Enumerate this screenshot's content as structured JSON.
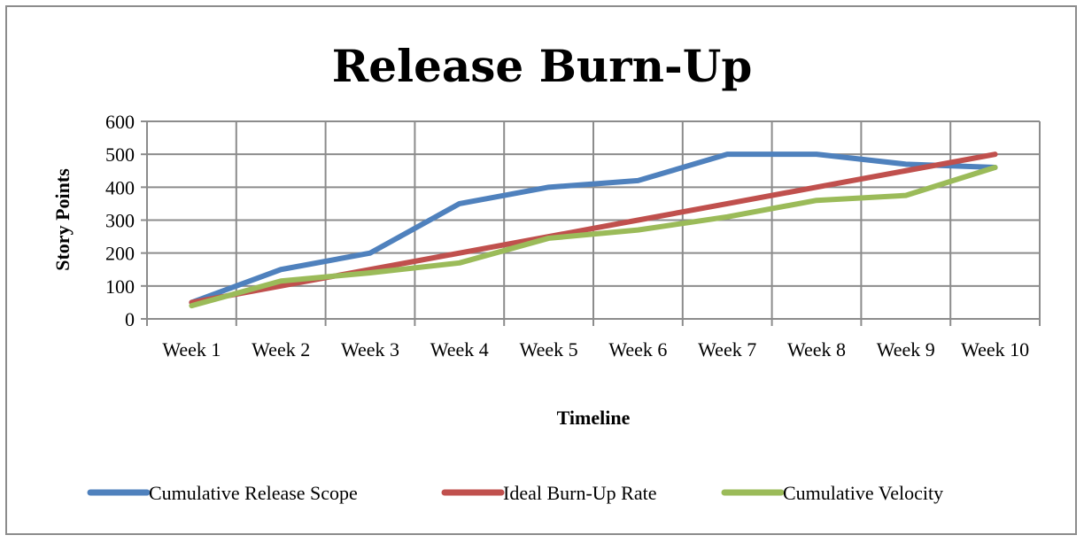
{
  "chart_data": {
    "type": "line",
    "title": "Release Burn-Up",
    "xlabel": "Timeline",
    "ylabel": "Story Points",
    "categories": [
      "Week 1",
      "Week 2",
      "Week 3",
      "Week 4",
      "Week 5",
      "Week 6",
      "Week 7",
      "Week 8",
      "Week 9",
      "Week 10"
    ],
    "ylim": [
      0,
      600
    ],
    "yticks": [
      0,
      100,
      200,
      300,
      400,
      500,
      600
    ],
    "grid": true,
    "legend_position": "bottom",
    "series": [
      {
        "name": "Cumulative Release Scope",
        "color": "#4f81bd",
        "values": [
          50,
          150,
          200,
          350,
          400,
          420,
          500,
          500,
          470,
          460
        ]
      },
      {
        "name": "Ideal Burn-Up Rate",
        "color": "#c0504d",
        "values": [
          50,
          100,
          150,
          200,
          250,
          300,
          350,
          400,
          450,
          500
        ]
      },
      {
        "name": "Cumulative Velocity",
        "color": "#9bbb59",
        "values": [
          40,
          115,
          140,
          170,
          245,
          270,
          310,
          360,
          375,
          460
        ]
      }
    ]
  }
}
